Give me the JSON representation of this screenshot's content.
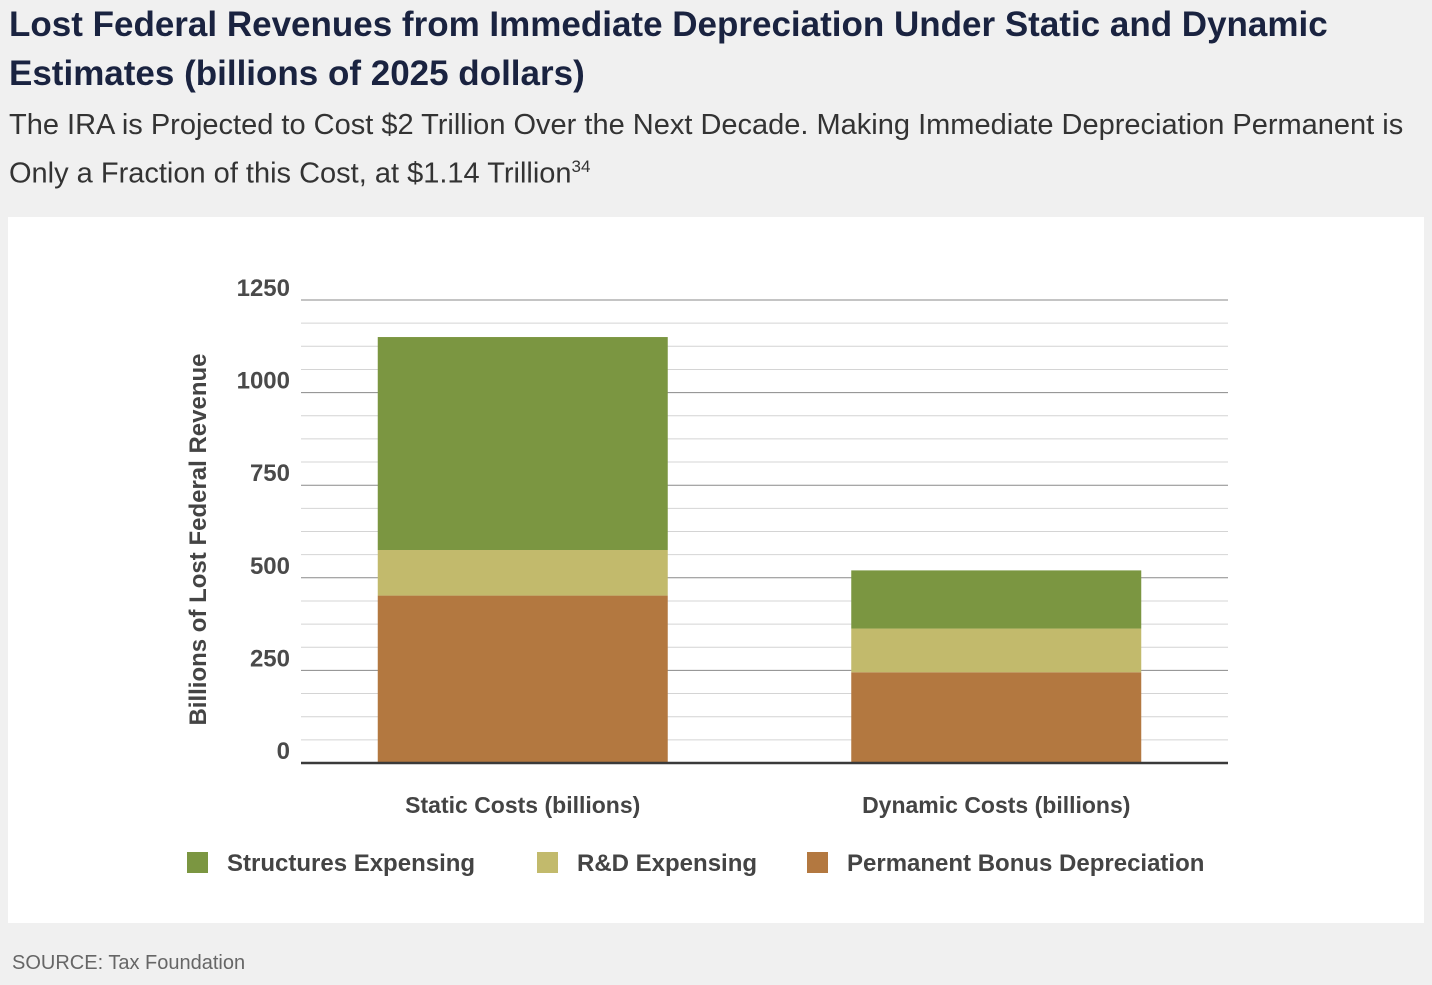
{
  "header": {
    "title": "Lost Federal Revenues from Immediate Depreciation Under Static and Dynamic Estimates (billions of 2025 dollars)",
    "subtitle": "The IRA is Projected to Cost $2 Trillion Over the Next Decade. Making Immediate Depreciation Permanent is Only a Fraction of this Cost, at $1.14 Trillion",
    "footnote_ref": "34"
  },
  "source": "SOURCE: Tax Foundation",
  "chart_data": {
    "type": "bar",
    "stacked": true,
    "categories": [
      "Static Costs (billions)",
      "Dynamic Costs (billions)"
    ],
    "series": [
      {
        "name": "Permanent Bonus Depreciation",
        "color": "#b37840",
        "values": [
          452,
          245
        ]
      },
      {
        "name": "R&D Expensing",
        "color": "#c2ba6c",
        "values": [
          123,
          118
        ]
      },
      {
        "name": "Structures Expensing",
        "color": "#7b9641",
        "values": [
          575,
          157
        ]
      }
    ],
    "stack_order_bottom_to_top": [
      "Permanent Bonus Depreciation",
      "R&D Expensing",
      "Structures Expensing"
    ],
    "legend_order": [
      "Structures Expensing",
      "R&D Expensing",
      "Permanent Bonus Depreciation"
    ],
    "ylabel": "Billions of Lost Federal Revenue",
    "xlabel": "",
    "ylim": [
      0,
      1250
    ],
    "yticks": [
      0,
      250,
      500,
      750,
      1000,
      1250
    ],
    "minor_grid_step": 62.5,
    "grid": true,
    "legend_position": "bottom"
  }
}
